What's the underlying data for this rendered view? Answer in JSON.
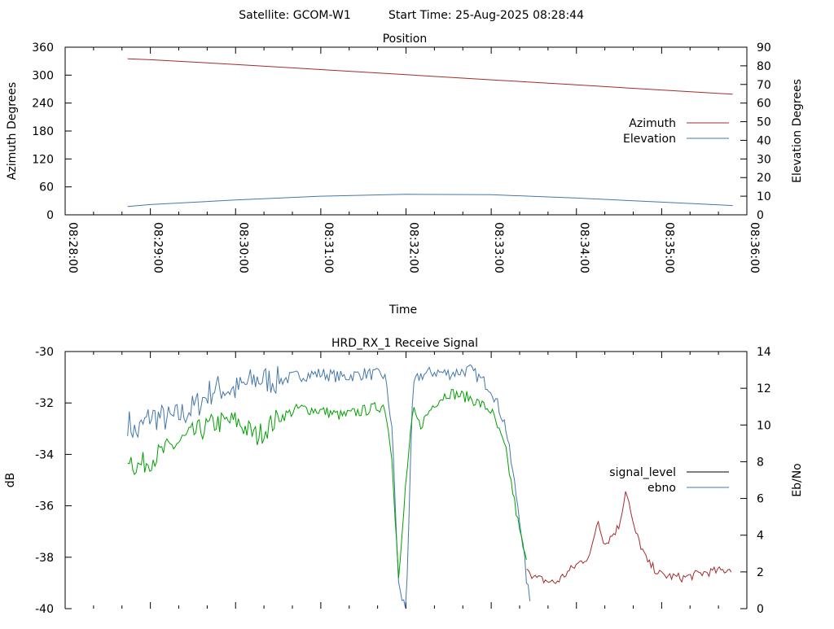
{
  "header": {
    "satellite_text": "Satellite: GCOM-W1",
    "start_time_text": "Start Time: 25-Aug-2025 08:28:44"
  },
  "colors": {
    "azimuth": "#a52a2a",
    "elevation": "#4477aa",
    "signal_level_legend": "#000000",
    "signal_level_trace": "#00a000",
    "ebno_legend": "#4477aa",
    "ebno_tail": "#a52a2a"
  },
  "chart_data": [
    {
      "type": "line",
      "title": "Position",
      "xlabel": "Time",
      "ylabel": "Azimuth Degrees",
      "y2label": "Elevation Degrees",
      "xlim": [
        "08:28:00",
        "08:36:00"
      ],
      "x_ticks": [
        "08:28:00",
        "08:29:00",
        "08:30:00",
        "08:31:00",
        "08:32:00",
        "08:33:00",
        "08:34:00",
        "08:35:00",
        "08:36:00"
      ],
      "ylim": [
        0,
        360
      ],
      "y_ticks": [
        "0",
        "60",
        "120",
        "180",
        "240",
        "300",
        "360"
      ],
      "y2lim": [
        0,
        90
      ],
      "y2_ticks": [
        "0",
        "10",
        "20",
        "30",
        "40",
        "50",
        "60",
        "70",
        "80",
        "90"
      ],
      "legend_position": "right",
      "series": [
        {
          "name": "Azimuth",
          "axis": "left",
          "x": [
            "08:28:44",
            "08:29:00",
            "08:30:00",
            "08:31:00",
            "08:32:00",
            "08:33:00",
            "08:34:00",
            "08:35:00",
            "08:35:50"
          ],
          "values": [
            335,
            333,
            323,
            312,
            301,
            290,
            279,
            268,
            259
          ]
        },
        {
          "name": "Elevation",
          "axis": "right",
          "x": [
            "08:28:44",
            "08:29:00",
            "08:30:00",
            "08:31:00",
            "08:32:00",
            "08:33:00",
            "08:34:00",
            "08:35:00",
            "08:35:50"
          ],
          "values": [
            4.5,
            5.5,
            8,
            10,
            11,
            10.8,
            9,
            6.8,
            5
          ]
        }
      ]
    },
    {
      "type": "line",
      "title": "HRD_RX_1 Receive Signal",
      "ylabel": "dB",
      "y2label": "Eb/No",
      "xlim": [
        "08:28:00",
        "08:36:00"
      ],
      "ylim": [
        -40,
        -30
      ],
      "y_ticks": [
        "-30",
        "-32",
        "-34",
        "-36",
        "-38",
        "-40"
      ],
      "y2lim": [
        0,
        14
      ],
      "y2_ticks": [
        "0",
        "2",
        "4",
        "6",
        "8",
        "10",
        "12",
        "14"
      ],
      "legend_position": "right",
      "series": [
        {
          "name": "signal_level",
          "axis": "left",
          "x": [
            "08:28:44",
            "08:28:50",
            "08:29:00",
            "08:29:15",
            "08:29:30",
            "08:29:45",
            "08:30:00",
            "08:30:15",
            "08:30:30",
            "08:30:45",
            "08:31:00",
            "08:31:15",
            "08:31:30",
            "08:31:45",
            "08:31:50",
            "08:31:55",
            "08:32:00",
            "08:32:05",
            "08:32:10",
            "08:32:20",
            "08:32:30",
            "08:32:45",
            "08:33:00",
            "08:33:10",
            "08:33:20",
            "08:33:25",
            "08:33:30",
            "08:33:45",
            "08:34:00",
            "08:34:10",
            "08:34:15",
            "08:34:20",
            "08:34:30",
            "08:34:35",
            "08:34:40",
            "08:34:50",
            "08:35:00",
            "08:35:15",
            "08:35:30",
            "08:35:45",
            "08:35:50"
          ],
          "values": [
            -34.0,
            -34.5,
            -34.2,
            -33.7,
            -33.2,
            -32.8,
            -32.7,
            -33.3,
            -32.6,
            -32.2,
            -32.3,
            -32.5,
            -32.3,
            -32.1,
            -34.0,
            -39.0,
            -35.0,
            -32.3,
            -32.9,
            -32.0,
            -31.6,
            -31.8,
            -32.3,
            -33.8,
            -37.0,
            -38.3,
            -38.8,
            -39.0,
            -38.3,
            -37.9,
            -36.5,
            -37.5,
            -36.8,
            -35.3,
            -36.8,
            -38.2,
            -38.7,
            -38.8,
            -38.6,
            -38.5,
            -38.4
          ]
        },
        {
          "name": "ebno",
          "axis": "right",
          "x": [
            "08:28:44",
            "08:28:50",
            "08:29:00",
            "08:29:15",
            "08:29:30",
            "08:29:45",
            "08:30:00",
            "08:30:15",
            "08:30:30",
            "08:30:45",
            "08:31:00",
            "08:31:15",
            "08:31:30",
            "08:31:45",
            "08:31:50",
            "08:31:55",
            "08:32:00",
            "08:32:05",
            "08:32:10",
            "08:32:20",
            "08:32:30",
            "08:32:45",
            "08:33:00",
            "08:33:10",
            "08:33:20",
            "08:33:25",
            "08:33:28"
          ],
          "values": [
            10.2,
            9.5,
            10.5,
            10.3,
            10.9,
            12.0,
            11.9,
            12.5,
            12.4,
            12.7,
            12.8,
            12.6,
            12.8,
            12.7,
            10.0,
            1.0,
            0.0,
            12.2,
            12.7,
            12.9,
            12.8,
            13.0,
            12.0,
            10.0,
            5.0,
            1.5,
            0.0
          ]
        }
      ]
    }
  ]
}
